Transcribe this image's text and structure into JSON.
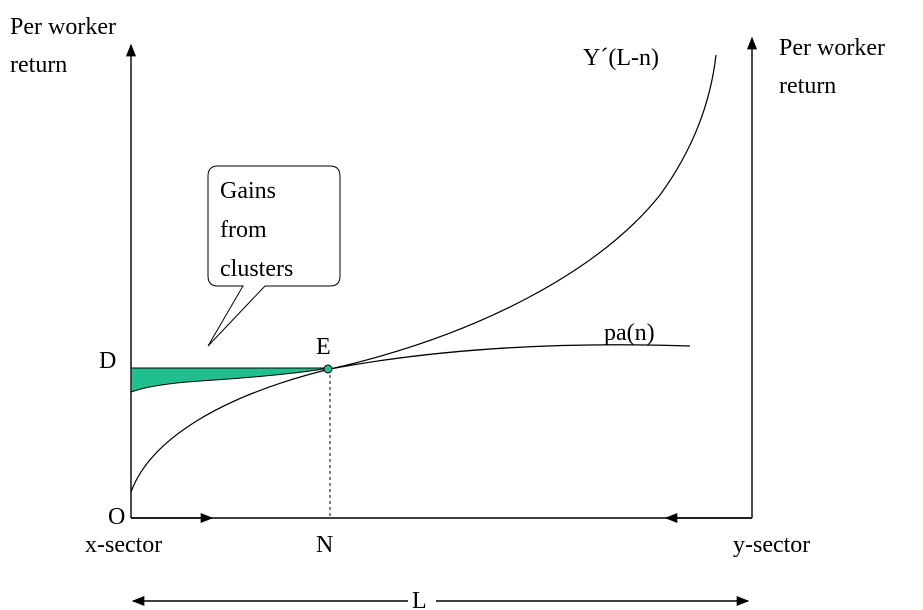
{
  "labels": {
    "left_axis_line1": "Per worker",
    "left_axis_line2": "return",
    "right_axis_line1": "Per worker",
    "right_axis_line2": "return",
    "curve_y": "Y´(L-n)",
    "curve_pa": "pa(n)",
    "point_D": "D",
    "point_E": "E",
    "origin_O": "O",
    "point_N": "N",
    "x_sector": "x-sector",
    "y_sector": "y-sector",
    "total_L": "L",
    "callout_line1": "Gains",
    "callout_line2": "from",
    "callout_line3": "clusters"
  },
  "colors": {
    "shaded_area": "#1fbf8f",
    "line": "#000000"
  }
}
